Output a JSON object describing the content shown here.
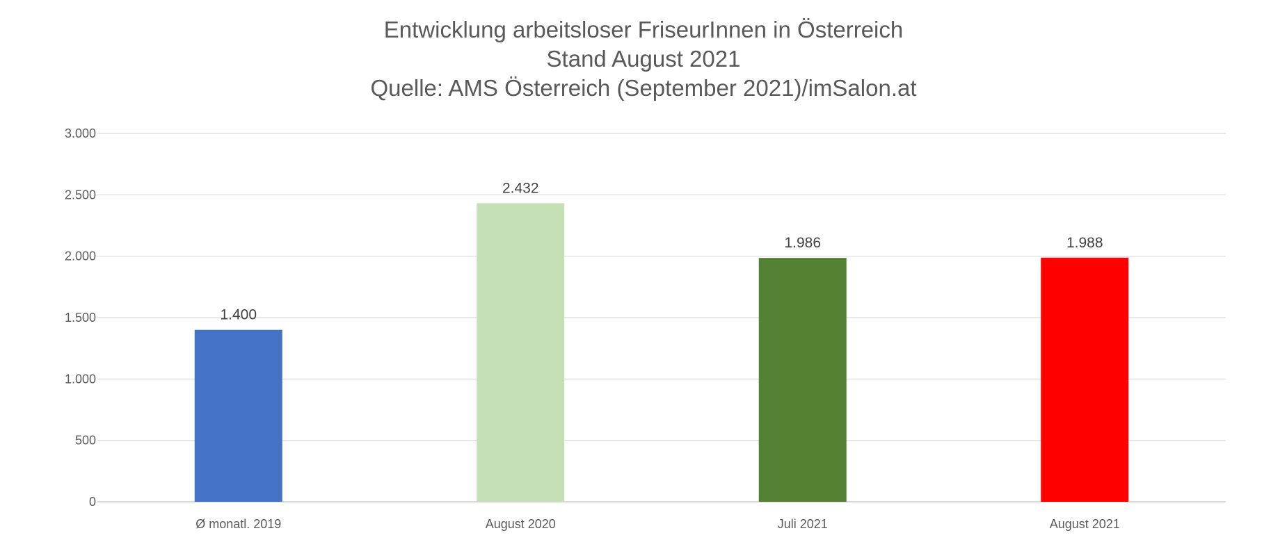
{
  "chart_data": {
    "type": "bar",
    "title_lines": [
      "Entwicklung arbeitsloser FriseurInnen in Österreich",
      "Stand August 2021",
      "Quelle: AMS Österreich (September 2021)/imSalon.at"
    ],
    "categories": [
      "Ø monatl. 2019",
      "August 2020",
      "Juli 2021",
      "August 2021"
    ],
    "values": [
      1400,
      2432,
      1986,
      1988
    ],
    "value_labels": [
      "1.400",
      "2.432",
      "1.986",
      "1.988"
    ],
    "bar_colors": [
      "#4472C4",
      "#C5E0B4",
      "#548235",
      "#FF0000"
    ],
    "ylim": [
      0,
      3000
    ],
    "yticks": [
      0,
      500,
      1000,
      1500,
      2000,
      2500,
      3000
    ],
    "ytick_labels": [
      "0",
      "500",
      "1.000",
      "1.500",
      "2.000",
      "2.500",
      "3.000"
    ],
    "grid": true,
    "legend": "none",
    "xlabel": "",
    "ylabel": ""
  }
}
